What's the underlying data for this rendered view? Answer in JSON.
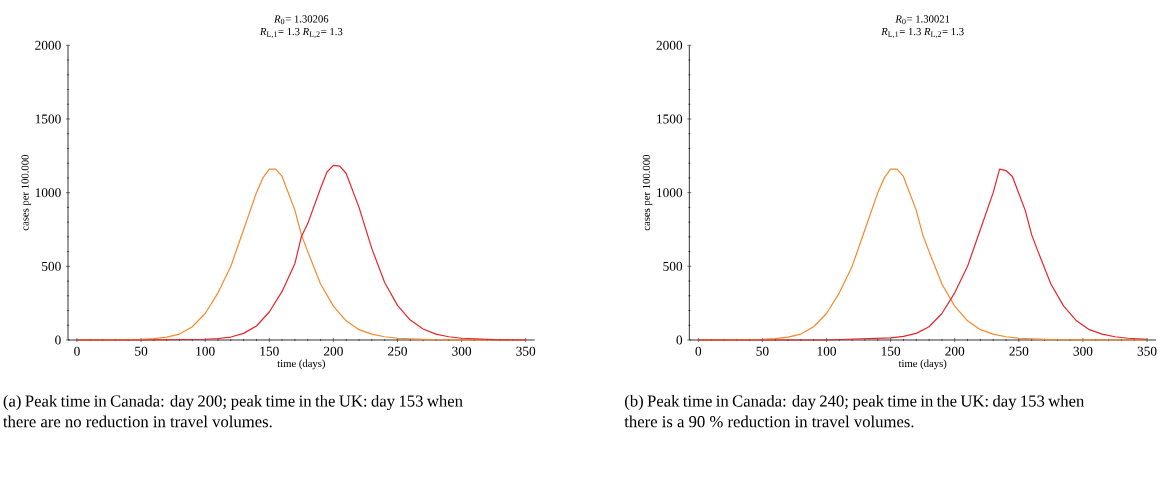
{
  "chart_data": [
    {
      "type": "line",
      "title": "*R*$_{0}$= 1.30206",
      "subtitle": "*R*$_{L,1}$= 1.3 *R*$_{L,2}$= 1.3",
      "xlabel": "time (days)",
      "ylabel": "cases per 100.000",
      "xlim": [
        -7,
        357
      ],
      "xticks": [
        0,
        50,
        100,
        150,
        200,
        250,
        300,
        350
      ],
      "ylim": [
        0,
        2000
      ],
      "yticks": [
        0,
        500,
        1000,
        1500,
        2000
      ],
      "series": [
        {
          "color": "#f7892b",
          "x": [
            0,
            25,
            50,
            60,
            70,
            80,
            90,
            100,
            110,
            120,
            130,
            140,
            145,
            150,
            155,
            160,
            170,
            175,
            180,
            190,
            200,
            210,
            220,
            230,
            240,
            250,
            275,
            300,
            350
          ],
          "values": [
            0,
            1,
            5,
            9,
            20,
            40,
            90,
            180,
            320,
            500,
            750,
            1000,
            1100,
            1160,
            1160,
            1110,
            880,
            715,
            600,
            380,
            230,
            130,
            70,
            40,
            22,
            12,
            3,
            1,
            0
          ]
        },
        {
          "color": "#e8242b",
          "x": [
            0,
            50,
            100,
            110,
            120,
            130,
            140,
            150,
            160,
            170,
            175,
            180,
            190,
            195,
            200,
            205,
            210,
            220,
            230,
            240,
            250,
            260,
            270,
            280,
            290,
            300,
            325,
            350
          ],
          "values": [
            0,
            0,
            5,
            10,
            20,
            45,
            95,
            190,
            330,
            520,
            700,
            790,
            1030,
            1140,
            1185,
            1180,
            1130,
            900,
            620,
            390,
            235,
            135,
            75,
            40,
            22,
            12,
            3,
            0
          ]
        }
      ],
      "annotations": [
        "(a) Peak time in Canada: day 200; peak time in the UK: day 153 when there are no reduction in travel volumes."
      ]
    },
    {
      "type": "line",
      "title": "*R*$_{0}$= 1.30021",
      "subtitle": "*R*$_{L,1}$= 1.3 *R*$_{L,2}$= 1.3",
      "xlabel": "time (days)",
      "ylabel": "cases per 100.000",
      "xlim": [
        -7,
        357
      ],
      "xticks": [
        0,
        50,
        100,
        150,
        200,
        250,
        300,
        350
      ],
      "ylim": [
        0,
        2000
      ],
      "yticks": [
        0,
        500,
        1000,
        1500,
        2000
      ],
      "series": [
        {
          "color": "#f7892b",
          "x": [
            0,
            25,
            50,
            60,
            70,
            80,
            90,
            100,
            110,
            120,
            130,
            140,
            145,
            150,
            155,
            160,
            170,
            175,
            180,
            190,
            200,
            210,
            220,
            230,
            240,
            250,
            275,
            300,
            350
          ],
          "values": [
            0,
            1,
            5,
            9,
            20,
            40,
            90,
            180,
            320,
            500,
            750,
            1000,
            1100,
            1160,
            1160,
            1110,
            880,
            715,
            600,
            380,
            230,
            130,
            70,
            40,
            22,
            12,
            3,
            1,
            0
          ]
        },
        {
          "color": "#e8242b",
          "x": [
            0,
            100,
            150,
            160,
            170,
            180,
            190,
            200,
            210,
            220,
            230,
            235,
            240,
            245,
            255,
            260,
            265,
            275,
            285,
            295,
            305,
            315,
            325,
            335,
            350
          ],
          "values": [
            0,
            0,
            15,
            25,
            45,
            90,
            180,
            320,
            500,
            750,
            1000,
            1160,
            1150,
            1110,
            880,
            715,
            600,
            380,
            230,
            130,
            70,
            40,
            22,
            12,
            5
          ]
        }
      ],
      "annotations": [
        "(b) Peak time in Canada: day 240; peak time in the UK: day 153 when there is a 90 % reduction in travel volumes."
      ]
    }
  ]
}
